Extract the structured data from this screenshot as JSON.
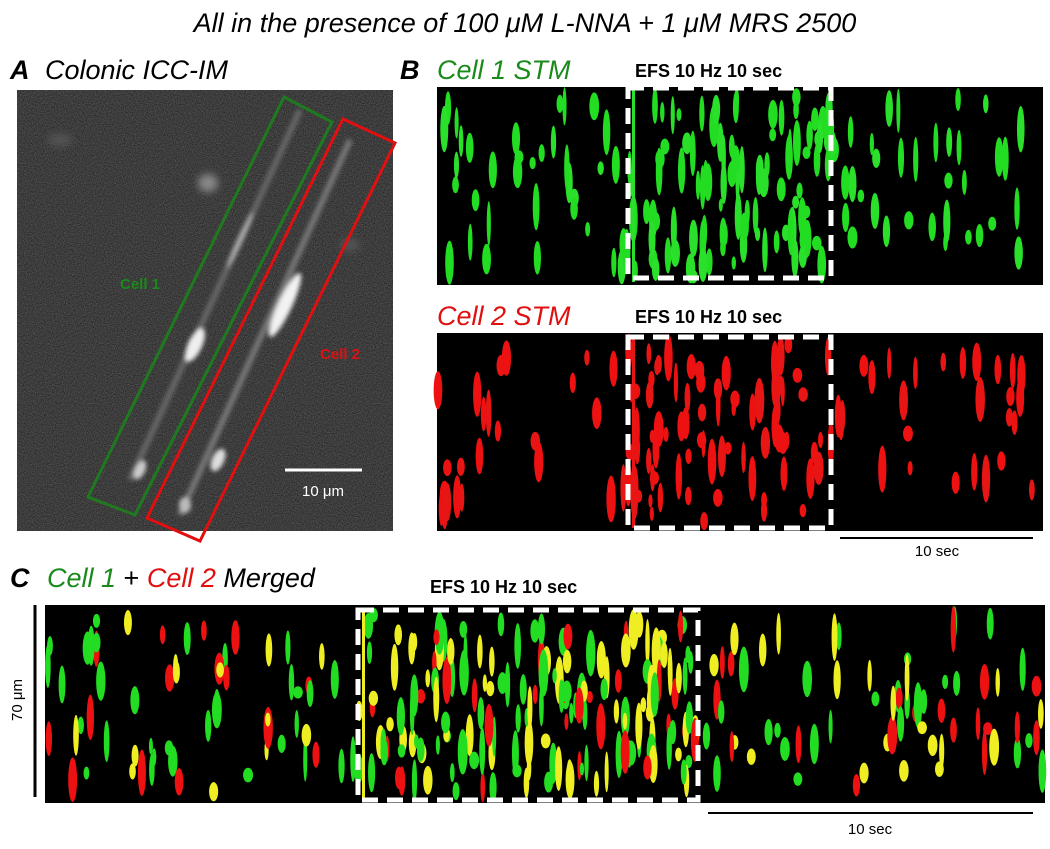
{
  "title": "All in the presence of 100 μM L-NNA + 1 μM MRS 2500",
  "panels": [
    {
      "letter": "A",
      "title": "Colonic ICC-IM",
      "labels": [
        "Cell 1",
        "Cell 2"
      ],
      "scale_bar": "10 μm"
    },
    {
      "letter": "B",
      "rows": [
        {
          "title": "Cell 1 STM",
          "stimulus": "EFS 10 Hz 10 sec"
        },
        {
          "title": "Cell 2 STM",
          "stimulus": "EFS 10 Hz 10 sec"
        }
      ],
      "time_scale": "10 sec"
    },
    {
      "letter": "C",
      "title_parts": [
        "Cell 1",
        "+",
        "Cell 2",
        "Merged"
      ],
      "stimulus": "EFS 10 Hz 10 sec",
      "space_scale": "70 μm",
      "time_scale": "10 sec"
    }
  ]
}
